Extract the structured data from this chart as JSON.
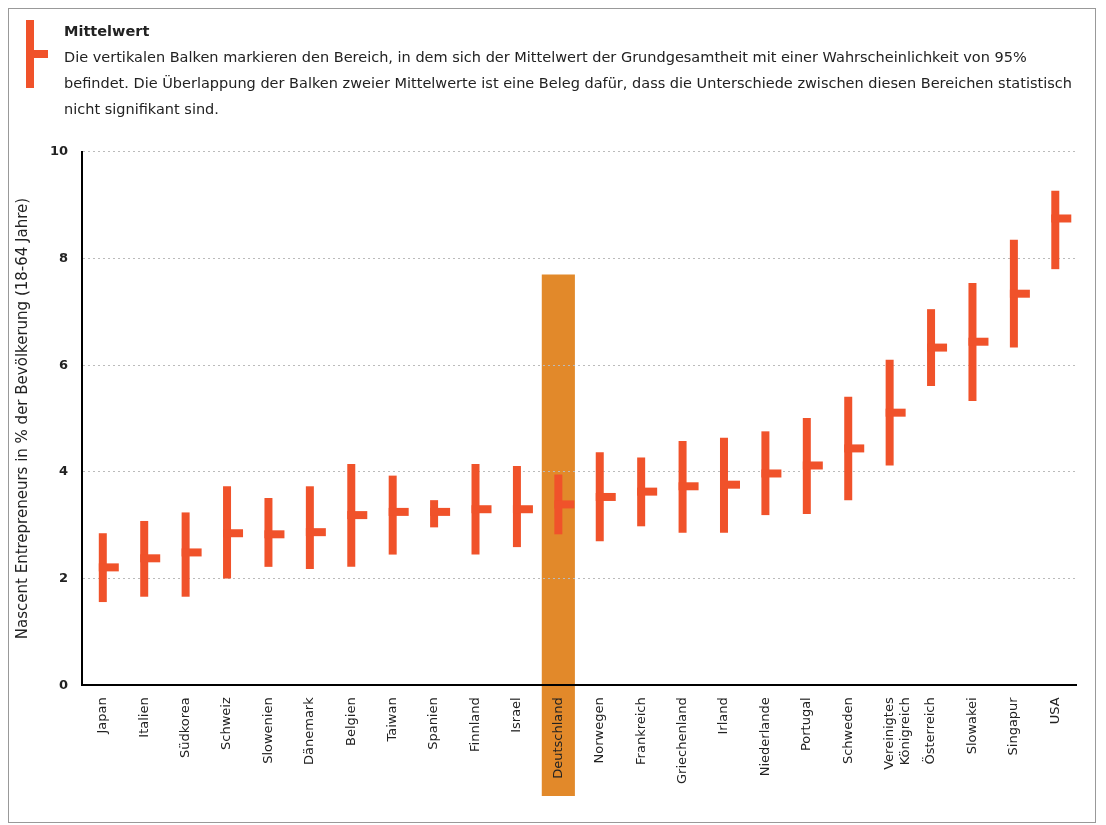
{
  "chart_data": {
    "type": "scatter",
    "subtitle": "Die vertikalen Balken markieren den Bereich, in dem sich der Mittelwert der Grundgesamtheit mit einer Wahrscheinlichkeit von 95% befindet. Die Überlappung der Balken zweier Mittelwerte ist eine Beleg dafür, dass die Unterschiede zwischen diesen Bereichen statistisch nicht signifikant sind.",
    "ylabel": "Nascent Entrepreneurs in % der Bevölkerung (18-64 Jahre)",
    "categories": [
      "Japan",
      "Italien",
      "Südkorea",
      "Schweiz",
      "Slowenien",
      "Dänemark",
      "Belgien",
      "Taiwan",
      "Spanien",
      "Finnland",
      "Israel",
      "Deutschland",
      "Norwegen",
      "Frankreich",
      "Griechenland",
      "Irland",
      "Niederlande",
      "Portugal",
      "Schweden",
      "Vereinigtes Königreich",
      "Österreich",
      "Slowakei",
      "Singapur",
      "USA"
    ],
    "series": [
      {
        "name": "Mittelwert",
        "color": "#f0522a",
        "values": [
          2.21,
          2.38,
          2.49,
          2.85,
          2.83,
          2.87,
          3.19,
          3.25,
          3.25,
          3.3,
          3.3,
          3.39,
          3.53,
          3.63,
          3.73,
          3.76,
          3.97,
          4.12,
          4.44,
          5.11,
          6.33,
          6.44,
          7.34,
          8.75
        ],
        "errors": [
          [
            1.56,
            2.85
          ],
          [
            1.66,
            3.08
          ],
          [
            1.66,
            3.24
          ],
          [
            2.0,
            3.73
          ],
          [
            2.22,
            3.51
          ],
          [
            2.18,
            3.73
          ],
          [
            2.22,
            4.15
          ],
          [
            2.45,
            3.93
          ],
          [
            2.96,
            3.47
          ],
          [
            2.45,
            4.15
          ],
          [
            2.59,
            4.11
          ],
          [
            2.83,
            3.95
          ],
          [
            2.7,
            4.37
          ],
          [
            2.98,
            4.27
          ],
          [
            2.86,
            4.58
          ],
          [
            2.86,
            4.64
          ],
          [
            3.19,
            4.76
          ],
          [
            3.21,
            5.01
          ],
          [
            3.47,
            5.41
          ],
          [
            4.12,
            6.1
          ],
          [
            5.61,
            7.05
          ],
          [
            5.33,
            7.54
          ],
          [
            6.33,
            8.35
          ],
          [
            7.8,
            9.27
          ]
        ]
      }
    ],
    "bands": [
      {
        "axis": "x",
        "from": "Deutschland",
        "to": "Deutschland",
        "color": "#e2892a"
      }
    ],
    "ylim": [
      0,
      10
    ],
    "yticks": [
      0,
      2,
      4,
      6,
      8,
      10
    ],
    "grid": "y",
    "legend": "top left"
  }
}
